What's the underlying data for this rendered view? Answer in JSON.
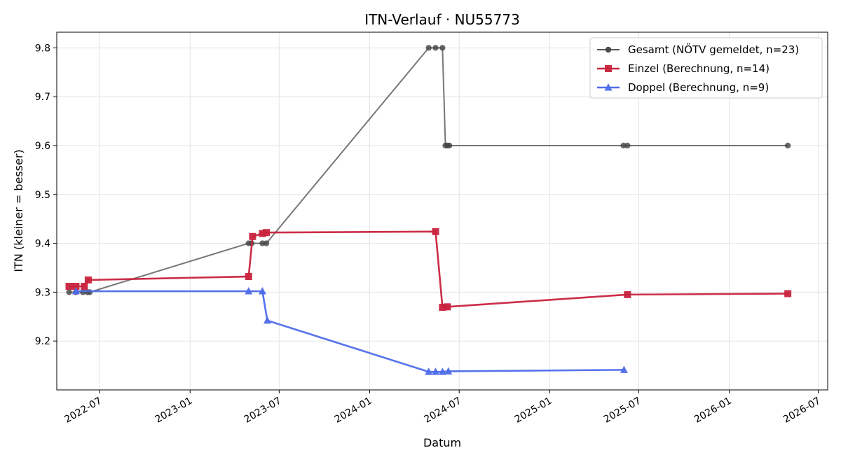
{
  "chart_data": {
    "type": "line",
    "title": "ITN-Verlauf · NU55773",
    "xlabel": "Datum",
    "ylabel": "ITN  (kleiner = besser)",
    "x_axis_type": "date",
    "xlim": [
      "2022-04-05",
      "2026-07-20"
    ],
    "ylim": [
      9.1,
      9.832
    ],
    "x_ticks": [
      "2022-07-01",
      "2023-01-01",
      "2023-07-01",
      "2024-01-01",
      "2024-07-01",
      "2025-01-01",
      "2025-07-01",
      "2026-01-01",
      "2026-07-01"
    ],
    "x_tick_labels": [
      "2022-07",
      "2023-01",
      "2023-07",
      "2024-01",
      "2024-07",
      "2025-01",
      "2025-07",
      "2026-01",
      "2026-07"
    ],
    "y_ticks": [
      9.2,
      9.3,
      9.4,
      9.5,
      9.6,
      9.7,
      9.8
    ],
    "y_tick_labels": [
      "9.2",
      "9.3",
      "9.4",
      "9.5",
      "9.6",
      "9.7",
      "9.8"
    ],
    "grid": true,
    "legend_position": "top-right",
    "series": [
      {
        "name": "Gesamt (NÖTV gemeldet, n=23)",
        "color": "#555555",
        "marker": "circle",
        "points": [
          {
            "x": "2022-04-30",
            "y": 9.3
          },
          {
            "x": "2022-05-14",
            "y": 9.3
          },
          {
            "x": "2022-05-28",
            "y": 9.3
          },
          {
            "x": "2022-06-06",
            "y": 9.3
          },
          {
            "x": "2022-06-11",
            "y": 9.3
          },
          {
            "x": "2023-04-30",
            "y": 9.4
          },
          {
            "x": "2023-05-06",
            "y": 9.4
          },
          {
            "x": "2023-05-28",
            "y": 9.4
          },
          {
            "x": "2023-06-05",
            "y": 9.4
          },
          {
            "x": "2024-04-30",
            "y": 9.8
          },
          {
            "x": "2024-05-14",
            "y": 9.8
          },
          {
            "x": "2024-05-28",
            "y": 9.8
          },
          {
            "x": "2024-06-03",
            "y": 9.6
          },
          {
            "x": "2024-06-07",
            "y": 9.6
          },
          {
            "x": "2024-06-11",
            "y": 9.6
          },
          {
            "x": "2025-05-31",
            "y": 9.6
          },
          {
            "x": "2025-06-08",
            "y": 9.6
          },
          {
            "x": "2026-04-30",
            "y": 9.6
          }
        ]
      },
      {
        "name": "Einzel (Berechnung, n=14)",
        "color": "#c8233d",
        "marker": "square",
        "points": [
          {
            "x": "2022-04-30",
            "y": 9.312
          },
          {
            "x": "2022-05-14",
            "y": 9.312
          },
          {
            "x": "2022-05-31",
            "y": 9.312
          },
          {
            "x": "2022-06-08",
            "y": 9.325
          },
          {
            "x": "2023-04-30",
            "y": 9.332
          },
          {
            "x": "2023-05-08",
            "y": 9.414
          },
          {
            "x": "2023-05-28",
            "y": 9.42
          },
          {
            "x": "2023-06-05",
            "y": 9.422
          },
          {
            "x": "2024-05-14",
            "y": 9.424
          },
          {
            "x": "2024-05-28",
            "y": 9.269
          },
          {
            "x": "2024-06-07",
            "y": 9.27
          },
          {
            "x": "2025-06-08",
            "y": 9.295
          },
          {
            "x": "2026-04-30",
            "y": 9.297
          }
        ]
      },
      {
        "name": "Doppel (Berechnung, n=9)",
        "color": "#4e6cea",
        "marker": "triangle",
        "points": [
          {
            "x": "2022-05-14",
            "y": 9.302
          },
          {
            "x": "2023-04-30",
            "y": 9.302
          },
          {
            "x": "2023-05-28",
            "y": 9.302
          },
          {
            "x": "2023-06-07",
            "y": 9.242
          },
          {
            "x": "2024-04-30",
            "y": 9.137
          },
          {
            "x": "2024-05-14",
            "y": 9.137
          },
          {
            "x": "2024-05-28",
            "y": 9.137
          },
          {
            "x": "2024-06-09",
            "y": 9.138
          },
          {
            "x": "2025-06-01",
            "y": 9.141
          }
        ]
      }
    ]
  }
}
